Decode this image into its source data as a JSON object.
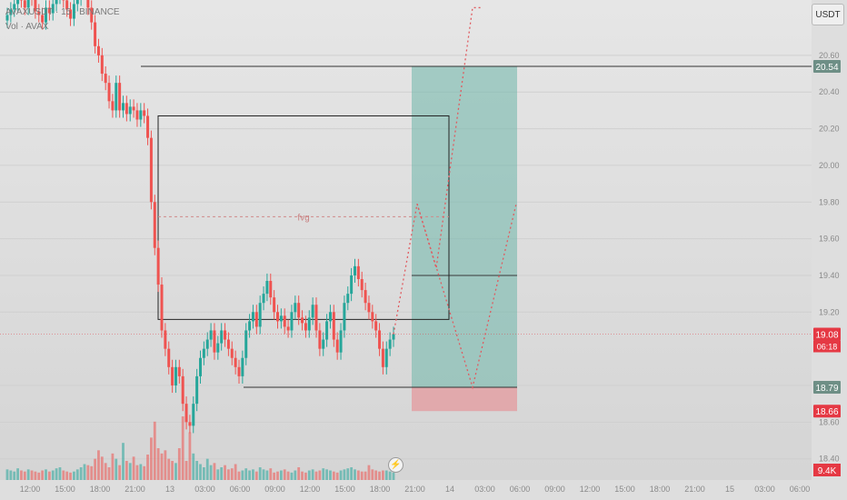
{
  "legend": {
    "symbol_line": "AVAXUSDT · 15 · BINANCE",
    "volume_line": "Vol · AVAX"
  },
  "currency": "USDT",
  "colors": {
    "up": "#26a69a",
    "down": "#ef5350",
    "target_zone": "#76b9ad",
    "stop_zone": "#e49a9e",
    "projection": "#e05a5f",
    "price_label": "#e53944",
    "level_label": "#6e8f86"
  },
  "annotations": {
    "fvg_label": "fvg"
  },
  "chart_data": {
    "type": "candlestick",
    "y_range": [
      18.3,
      20.7
    ],
    "y_ticks": [
      {
        "value": 20.6,
        "label": "20.60"
      },
      {
        "value": 20.4,
        "label": "20.40"
      },
      {
        "value": 20.2,
        "label": "20.20"
      },
      {
        "value": 20.0,
        "label": "20.00"
      },
      {
        "value": 19.8,
        "label": "19.80"
      },
      {
        "value": 19.6,
        "label": "19.60"
      },
      {
        "value": 19.4,
        "label": "19.40"
      },
      {
        "value": 19.2,
        "label": "19.20"
      },
      {
        "value": 18.8,
        "label": "18.80"
      },
      {
        "value": 18.6,
        "label": "18.60"
      },
      {
        "value": 18.4,
        "label": "18.40"
      }
    ],
    "x_ticks": [
      "12:00",
      "15:00",
      "18:00",
      "21:00",
      "13",
      "03:00",
      "06:00",
      "09:00",
      "12:00",
      "15:00",
      "18:00",
      "21:00",
      "14",
      "03:00",
      "06:00",
      "09:00",
      "12:00",
      "15:00",
      "18:00",
      "21:00",
      "15",
      "03:00",
      "06:00"
    ],
    "price_labels": [
      {
        "kind": "level",
        "value": 20.54,
        "text": "20.54"
      },
      {
        "kind": "current",
        "value": 19.08,
        "text": "19.08",
        "countdown": "06:18"
      },
      {
        "kind": "level",
        "value": 18.79,
        "text": "18.79"
      },
      {
        "kind": "stop",
        "value": 18.66,
        "text": "18.66"
      }
    ],
    "volume_label": "9.4K",
    "closes": [
      20.82,
      20.85,
      20.88,
      20.93,
      20.9,
      20.86,
      20.95,
      20.91,
      20.84,
      20.82,
      20.78,
      20.86,
      20.83,
      20.88,
      20.92,
      20.95,
      20.9,
      20.85,
      20.8,
      20.88,
      20.91,
      20.95,
      21.02,
      20.86,
      20.78,
      20.65,
      20.6,
      20.5,
      20.45,
      20.35,
      20.3,
      20.45,
      20.3,
      20.34,
      20.28,
      20.32,
      20.3,
      20.25,
      20.3,
      20.27,
      20.15,
      19.8,
      19.55,
      19.35,
      19.1,
      19.0,
      18.9,
      18.8,
      18.9,
      18.85,
      18.7,
      18.6,
      18.58,
      18.7,
      18.85,
      18.95,
      19.0,
      19.05,
      19.1,
      18.98,
      19.03,
      19.1,
      19.05,
      19.0,
      18.95,
      18.9,
      18.85,
      18.95,
      19.1,
      19.15,
      19.2,
      19.12,
      19.25,
      19.3,
      19.37,
      19.28,
      19.2,
      19.15,
      19.18,
      19.12,
      19.1,
      19.2,
      19.25,
      19.17,
      19.14,
      19.1,
      19.17,
      19.24,
      19.1,
      19.0,
      19.05,
      19.15,
      19.2,
      19.05,
      18.98,
      19.1,
      19.25,
      19.3,
      19.4,
      19.45,
      19.38,
      19.32,
      19.25,
      19.2,
      19.15,
      19.1,
      19.0,
      18.9,
      19.0,
      19.05,
      19.08
    ],
    "volumes": [
      1.0,
      0.9,
      0.8,
      1.1,
      0.9,
      0.8,
      1.0,
      0.9,
      0.8,
      0.7,
      0.9,
      1.0,
      0.8,
      0.9,
      1.1,
      1.2,
      0.9,
      0.8,
      0.7,
      0.8,
      1.0,
      1.2,
      1.5,
      1.4,
      1.3,
      2.0,
      2.8,
      2.2,
      1.6,
      1.2,
      2.5,
      2.0,
      1.4,
      3.5,
      1.8,
      1.6,
      2.2,
      1.4,
      1.5,
      1.3,
      2.4,
      4.0,
      5.5,
      3.0,
      2.5,
      2.8,
      2.0,
      1.8,
      1.6,
      3.0,
      6.0,
      1.8,
      4.5,
      2.5,
      1.8,
      1.5,
      1.2,
      2.0,
      1.4,
      1.6,
      1.0,
      1.2,
      1.4,
      1.0,
      1.1,
      1.5,
      0.8,
      0.9,
      1.1,
      0.9,
      1.0,
      0.8,
      1.2,
      1.0,
      0.9,
      1.1,
      0.7,
      0.8,
      0.9,
      1.0,
      0.8,
      0.7,
      0.9,
      1.2,
      0.8,
      0.7,
      0.9,
      1.0,
      0.8,
      0.9,
      1.1,
      1.0,
      0.9,
      0.8,
      0.7,
      0.9,
      1.0,
      1.1,
      1.2,
      1.0,
      0.9,
      0.8,
      0.8,
      1.4,
      1.0,
      0.9,
      0.8,
      0.9,
      0.9,
      0.8,
      0.7
    ],
    "levels": {
      "target_top": 20.54,
      "entry": 19.4,
      "stop": 18.79,
      "stop_bottom": 18.66,
      "fvg_top": 20.27,
      "fvg_bottom": 19.16,
      "fvg_mid": 19.72
    }
  }
}
